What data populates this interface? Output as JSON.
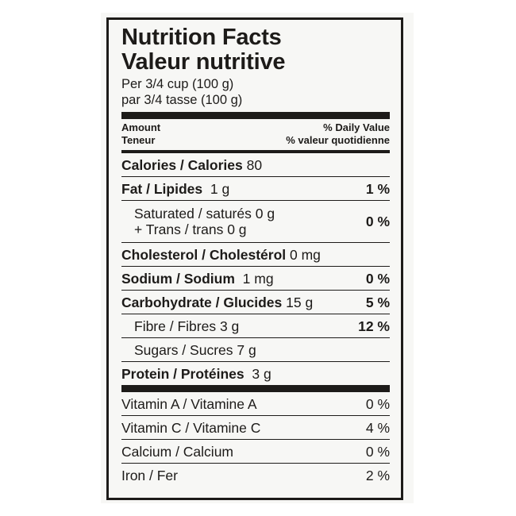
{
  "title_en": "Nutrition Facts",
  "title_fr": "Valeur nutritive",
  "serving_en": "Per 3/4 cup (100 g)",
  "serving_fr": "par 3/4 tasse (100 g)",
  "header": {
    "amount_en": "Amount",
    "amount_fr": "Teneur",
    "dv_en": "% Daily Value",
    "dv_fr": "% valeur quotidienne"
  },
  "calories": {
    "label": "Calories / Calories",
    "value": "80"
  },
  "fat": {
    "label": "Fat / Lipides",
    "value": "1 g",
    "dv": "1 %"
  },
  "saturated": {
    "label": "Saturated / saturés 0 g",
    "label2": "+ Trans / trans 0 g",
    "dv": "0 %"
  },
  "cholesterol": {
    "label": "Cholesterol / Cholestérol",
    "value": "0 mg"
  },
  "sodium": {
    "label": "Sodium / Sodium",
    "value": "1 mg",
    "dv": "0 %"
  },
  "carbohydrate": {
    "label": "Carbohydrate / Glucides",
    "value": "15 g",
    "dv": "5 %"
  },
  "fibre": {
    "label": "Fibre / Fibres 3 g",
    "dv": "12 %"
  },
  "sugars": {
    "label": "Sugars / Sucres 7 g"
  },
  "protein": {
    "label": "Protein / Protéines",
    "value": "3 g"
  },
  "vitamins": [
    {
      "label": "Vitamin A / Vitamine A",
      "dv": "0 %"
    },
    {
      "label": "Vitamin C / Vitamine C",
      "dv": "4 %"
    },
    {
      "label": "Calcium / Calcium",
      "dv": "0 %"
    },
    {
      "label": "Iron / Fer",
      "dv": "2 %"
    }
  ]
}
